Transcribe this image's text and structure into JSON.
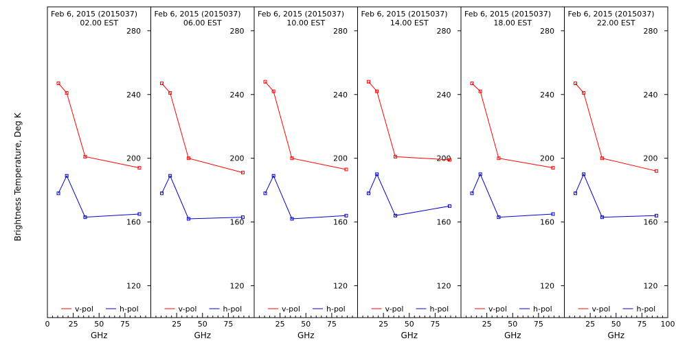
{
  "figure": {
    "ylabel": "Brightness Temperature, Deg K",
    "xlabel": "GHz",
    "legend_vpol": "v-pol",
    "legend_hpol": "h-pol"
  },
  "colors": {
    "vpol": "#ff0000",
    "hpol": "#0000cc",
    "axes": "#000000"
  },
  "chart_data": [
    {
      "type": "line",
      "title": "Feb  6, 2015 (2015037)",
      "subtitle": "02.00 EST",
      "xlabel": "GHz",
      "ylabel": "Brightness Temperature, Deg K",
      "xlim": [
        0,
        100
      ],
      "ylim": [
        100,
        295
      ],
      "x_ticks": [
        0,
        25,
        50,
        75
      ],
      "y_ticks": [
        120,
        160,
        200,
        240,
        280
      ],
      "grid": false,
      "legend": "bottom",
      "series": [
        {
          "name": "v-pol",
          "x": [
            10.65,
            18.7,
            36.5,
            89.0
          ],
          "y": [
            247,
            241,
            201,
            194
          ]
        },
        {
          "name": "h-pol",
          "x": [
            10.65,
            18.7,
            36.5,
            89.0
          ],
          "y": [
            178,
            189,
            163,
            165
          ]
        }
      ]
    },
    {
      "type": "line",
      "title": "Feb  6, 2015 (2015037)",
      "subtitle": "06.00 EST",
      "xlabel": "GHz",
      "xlim": [
        0,
        100
      ],
      "ylim": [
        100,
        295
      ],
      "x_ticks": [
        25,
        50,
        75
      ],
      "y_ticks": [
        120,
        160,
        200,
        240,
        280
      ],
      "grid": false,
      "legend": "bottom",
      "series": [
        {
          "name": "v-pol",
          "x": [
            10.65,
            18.7,
            36.5,
            89.0
          ],
          "y": [
            247,
            241,
            200,
            191
          ]
        },
        {
          "name": "h-pol",
          "x": [
            10.65,
            18.7,
            36.5,
            89.0
          ],
          "y": [
            178,
            189,
            162,
            163
          ]
        }
      ]
    },
    {
      "type": "line",
      "title": "Feb  6, 2015 (2015037)",
      "subtitle": "10.00 EST",
      "xlabel": "GHz",
      "xlim": [
        0,
        100
      ],
      "ylim": [
        100,
        295
      ],
      "x_ticks": [
        25,
        50,
        75
      ],
      "y_ticks": [
        120,
        160,
        200,
        240,
        280
      ],
      "grid": false,
      "legend": "bottom",
      "series": [
        {
          "name": "v-pol",
          "x": [
            10.65,
            18.7,
            36.5,
            89.0
          ],
          "y": [
            248,
            242,
            200,
            193
          ]
        },
        {
          "name": "h-pol",
          "x": [
            10.65,
            18.7,
            36.5,
            89.0
          ],
          "y": [
            178,
            189,
            162,
            164
          ]
        }
      ]
    },
    {
      "type": "line",
      "title": "Feb  6, 2015 (2015037)",
      "subtitle": "14.00 EST",
      "xlabel": "GHz",
      "xlim": [
        0,
        100
      ],
      "ylim": [
        100,
        295
      ],
      "x_ticks": [
        25,
        50,
        75
      ],
      "y_ticks": [
        120,
        160,
        200,
        240,
        280
      ],
      "grid": false,
      "legend": "bottom",
      "series": [
        {
          "name": "v-pol",
          "x": [
            10.65,
            18.7,
            36.5,
            89.0
          ],
          "y": [
            248,
            242,
            201,
            199
          ]
        },
        {
          "name": "h-pol",
          "x": [
            10.65,
            18.7,
            36.5,
            89.0
          ],
          "y": [
            178,
            190,
            164,
            170
          ]
        }
      ]
    },
    {
      "type": "line",
      "title": "Feb  6, 2015 (2015037)",
      "subtitle": "18.00 EST",
      "xlabel": "GHz",
      "xlim": [
        0,
        100
      ],
      "ylim": [
        100,
        295
      ],
      "x_ticks": [
        25,
        50,
        75
      ],
      "y_ticks": [
        120,
        160,
        200,
        240,
        280
      ],
      "grid": false,
      "legend": "bottom",
      "series": [
        {
          "name": "v-pol",
          "x": [
            10.65,
            18.7,
            36.5,
            89.0
          ],
          "y": [
            247,
            242,
            200,
            194
          ]
        },
        {
          "name": "h-pol",
          "x": [
            10.65,
            18.7,
            36.5,
            89.0
          ],
          "y": [
            178,
            190,
            163,
            165
          ]
        }
      ]
    },
    {
      "type": "line",
      "title": "Feb  6, 2015 (2015037)",
      "subtitle": "22.00 EST",
      "xlabel": "GHz",
      "xlim": [
        0,
        100
      ],
      "ylim": [
        100,
        295
      ],
      "x_ticks": [
        25,
        50,
        75,
        100
      ],
      "y_ticks": [
        120,
        160,
        200,
        240,
        280
      ],
      "grid": false,
      "legend": "bottom",
      "series": [
        {
          "name": "v-pol",
          "x": [
            10.65,
            18.7,
            36.5,
            89.0
          ],
          "y": [
            247,
            241,
            200,
            192
          ]
        },
        {
          "name": "h-pol",
          "x": [
            10.65,
            18.7,
            36.5,
            89.0
          ],
          "y": [
            178,
            190,
            163,
            164
          ]
        }
      ]
    }
  ]
}
